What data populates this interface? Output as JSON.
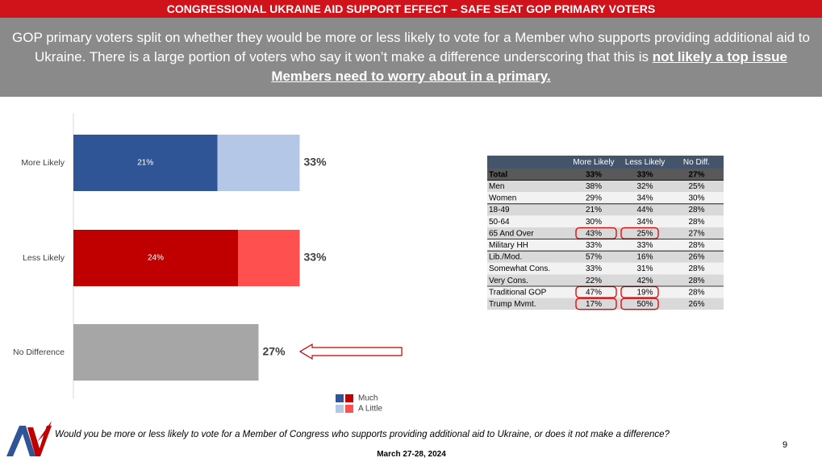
{
  "header": "CONGRESSIONAL UKRAINE AID SUPPORT EFFECT – SAFE SEAT GOP PRIMARY VOTERS",
  "subtitle": "GOP primary voters split on whether they would be more or less likely to vote for a Member who supports providing additional aid to Ukraine. There is a large portion of voters who say it won’t make a difference underscoring that this is",
  "subtitle_emphasis": "not likely a top issue Members need to worry about in a primary.",
  "chart_data": {
    "type": "stacked-bar-horizontal",
    "bars": [
      {
        "category": "More Likely",
        "segments": [
          {
            "value": 21,
            "label": "21%",
            "color": "#2f5597"
          },
          {
            "value": 12,
            "color": "#b4c7e7"
          }
        ],
        "total_label": "33%"
      },
      {
        "category": "Less Likely",
        "segments": [
          {
            "value": 24,
            "label": "24%",
            "color": "#c00000"
          },
          {
            "value": 9,
            "color": "#ff5050"
          }
        ],
        "total_label": "33%"
      },
      {
        "category": "No Difference",
        "segments": [
          {
            "value": 27,
            "color": "#a6a6a6"
          }
        ],
        "total_label": "27%"
      }
    ],
    "legend": [
      {
        "name": "Much",
        "colors": [
          "#2f5597",
          "#c00000"
        ]
      },
      {
        "name": "A Little",
        "colors": [
          "#b4c7e7",
          "#ff5050"
        ]
      }
    ]
  },
  "table": {
    "columns": [
      "More Likely",
      "Less Likely",
      "No Diff."
    ],
    "rows": [
      {
        "label": "Total",
        "values": [
          "33%",
          "33%",
          "27%"
        ]
      },
      {
        "label": "Men",
        "values": [
          "38%",
          "32%",
          "25%"
        ]
      },
      {
        "label": "Women",
        "values": [
          "29%",
          "34%",
          "30%"
        ]
      },
      {
        "label": "18-49",
        "values": [
          "21%",
          "44%",
          "28%"
        ]
      },
      {
        "label": "50-64",
        "values": [
          "30%",
          "34%",
          "28%"
        ]
      },
      {
        "label": "65 And Over",
        "values": [
          "43%",
          "25%",
          "27%"
        ],
        "circled": true
      },
      {
        "label": "Military HH",
        "values": [
          "33%",
          "33%",
          "28%"
        ]
      },
      {
        "label": "Lib./Mod.",
        "values": [
          "57%",
          "16%",
          "26%"
        ]
      },
      {
        "label": "Somewhat Cons.",
        "values": [
          "33%",
          "31%",
          "28%"
        ]
      },
      {
        "label": "Very Cons.",
        "values": [
          "22%",
          "42%",
          "28%"
        ]
      },
      {
        "label": "Traditional GOP",
        "values": [
          "47%",
          "19%",
          "28%"
        ],
        "circled": true
      },
      {
        "label": "Trump Mvmt.",
        "values": [
          "17%",
          "50%",
          "26%"
        ],
        "circled": true
      }
    ]
  },
  "footer": {
    "question": "Would you be more or less likely to vote for a Member of Congress who supports providing additional aid to Ukraine, or does it not make a difference?",
    "date": "March 27-28, 2024",
    "page": "9"
  }
}
